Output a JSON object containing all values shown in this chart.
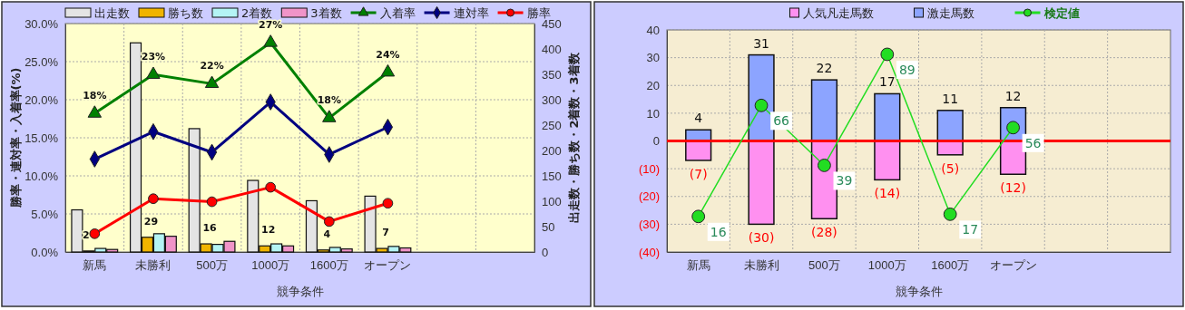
{
  "chart_data": [
    {
      "type": "bar",
      "xlabel": "競争条件",
      "ylabel": "勝率・連対率・入着率(%)",
      "y2label": "出走数・勝ち数・2着数・3着数",
      "categories": [
        "新馬",
        "未勝利",
        "500万",
        "1000万",
        "1600万",
        "オープン",
        null,
        null
      ],
      "series": [
        {
          "name": "出走数",
          "axis": "y2",
          "color": "#e4e4e4",
          "values": [
            83,
            412,
            243,
            141,
            101,
            110,
            null,
            null
          ]
        },
        {
          "name": "勝ち数",
          "axis": "y2",
          "color": "#f0b400",
          "values": [
            2,
            29,
            16,
            12,
            4,
            7,
            null,
            null
          ],
          "value_labels": [
            "2",
            "29",
            "16",
            "12",
            "4",
            "7",
            null,
            null
          ]
        },
        {
          "name": "2着数",
          "axis": "y2",
          "color": "#b4f4f4",
          "values": [
            7,
            36,
            15,
            16,
            9,
            11,
            null,
            null
          ]
        },
        {
          "name": "3着数",
          "axis": "y2",
          "color": "#f094c8",
          "values": [
            5,
            31,
            21,
            12,
            6,
            8,
            null,
            null
          ]
        },
        {
          "name": "入着率",
          "type": "line",
          "color": "#008000",
          "marker": "triangle",
          "values": [
            18.2,
            23.3,
            22.1,
            27.5,
            17.6,
            23.6,
            null,
            null
          ],
          "value_labels": [
            "18%",
            "23%",
            "22%",
            "27%",
            "18%",
            "24%",
            null,
            null
          ]
        },
        {
          "name": "連対率",
          "type": "line",
          "color": "#000080",
          "marker": "diamond",
          "values": [
            12.2,
            15.8,
            13.1,
            19.7,
            12.8,
            16.4,
            null,
            null
          ]
        },
        {
          "name": "勝率",
          "type": "line",
          "color": "#ff0000",
          "marker": "circle",
          "values": [
            2.4,
            7.0,
            6.6,
            8.5,
            4.0,
            6.4,
            null,
            null
          ]
        }
      ],
      "ylim": [
        0,
        30
      ],
      "yticks": [
        {
          "value": 0,
          "label": "0.0%"
        },
        {
          "value": 5,
          "label": "5.0%"
        },
        {
          "value": 10,
          "label": "10.0%"
        },
        {
          "value": 15,
          "label": "15.0%"
        },
        {
          "value": 20,
          "label": "20.0%"
        },
        {
          "value": 25,
          "label": "25.0%"
        },
        {
          "value": 30,
          "label": "30.0%"
        }
      ],
      "y2lim": [
        0,
        450
      ],
      "y2ticks": [
        0,
        50,
        100,
        150,
        200,
        250,
        300,
        350,
        400,
        450
      ],
      "grid": true,
      "legend": "top"
    },
    {
      "type": "bar",
      "stacked": true,
      "xlabel": "競争条件",
      "categories": [
        "新馬",
        "未勝利",
        "500万",
        "1000万",
        "1600万",
        "オープン",
        null,
        null
      ],
      "series": [
        {
          "name": "人気凡走馬数",
          "color": "#ff90f0",
          "values": [
            -7,
            -30,
            -28,
            -14,
            -5,
            -12,
            null,
            null
          ],
          "value_labels": [
            "(7)",
            "(30)",
            "(28)",
            "(14)",
            "(5)",
            "(12)",
            null,
            null
          ]
        },
        {
          "name": "激走馬数",
          "color": "#8ca4ff",
          "values": [
            4,
            31,
            22,
            17,
            11,
            12,
            null,
            null
          ],
          "value_labels": [
            "4",
            "31",
            "22",
            "17",
            "11",
            "12",
            null,
            null
          ]
        },
        {
          "name": "検定値",
          "type": "line",
          "axis": "y2",
          "color": "#22dd22",
          "marker": "circle",
          "values": [
            16,
            66,
            39,
            89,
            17,
            56,
            null,
            null
          ],
          "value_labels": [
            "16",
            "66",
            "39",
            "89",
            "17",
            "56",
            null,
            null
          ]
        }
      ],
      "ylim": [
        -40,
        40
      ],
      "yticks": [
        {
          "value": -40,
          "label": "(40)"
        },
        {
          "value": -30,
          "label": "(30)"
        },
        {
          "value": -20,
          "label": "(20)"
        },
        {
          "value": -10,
          "label": "(10)"
        },
        0,
        10,
        20,
        30,
        40
      ],
      "y2lim": [
        0,
        100
      ],
      "ref_lines": [
        {
          "axis": "y",
          "value": 0,
          "color": "#ff0000"
        }
      ],
      "grid": true,
      "legend": "top"
    }
  ]
}
